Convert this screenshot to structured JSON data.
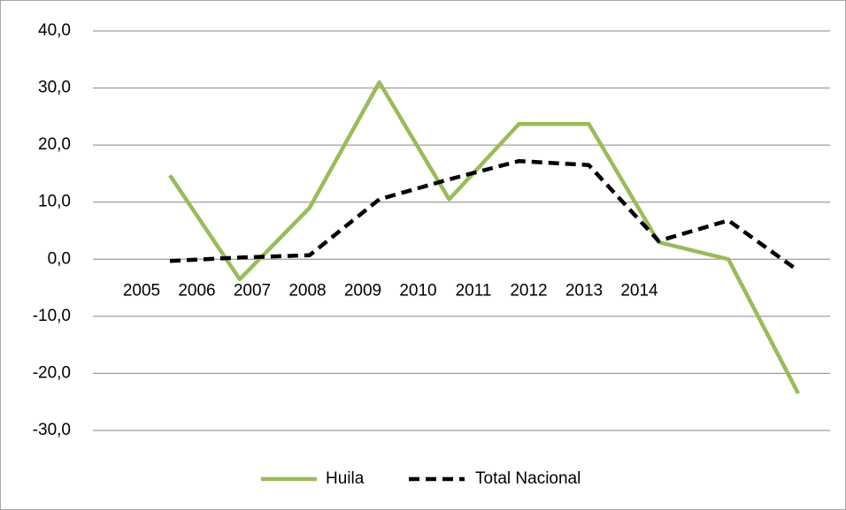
{
  "chart_data": {
    "type": "line",
    "categories": [
      "2005",
      "2006",
      "2007",
      "2008",
      "2009",
      "2010",
      "2011",
      "2012",
      "2013",
      "2014"
    ],
    "series": [
      {
        "name": "Huila",
        "color": "#9bbb59",
        "values": [
          14.7,
          -3.5,
          9.0,
          31.0,
          10.5,
          23.7,
          23.7,
          3.0,
          0.0,
          -23.5
        ]
      },
      {
        "name": "Total Nacional",
        "color": "#000000",
        "dashed": true,
        "values": [
          -0.3,
          0.3,
          0.7,
          10.5,
          14.0,
          17.2,
          16.5,
          3.2,
          6.8,
          -2.0
        ]
      }
    ],
    "ylim": [
      -30,
      40
    ],
    "yticks": [
      {
        "value": -30,
        "label": "-30,0"
      },
      {
        "value": -20,
        "label": "-20,0"
      },
      {
        "value": -10,
        "label": "-10,0"
      },
      {
        "value": 0,
        "label": "0,0"
      },
      {
        "value": 10,
        "label": "10,0"
      },
      {
        "value": 20,
        "label": "20,0"
      },
      {
        "value": 30,
        "label": "30,0"
      },
      {
        "value": 40,
        "label": "40,0"
      }
    ],
    "grid": true,
    "legend": "bottom"
  }
}
